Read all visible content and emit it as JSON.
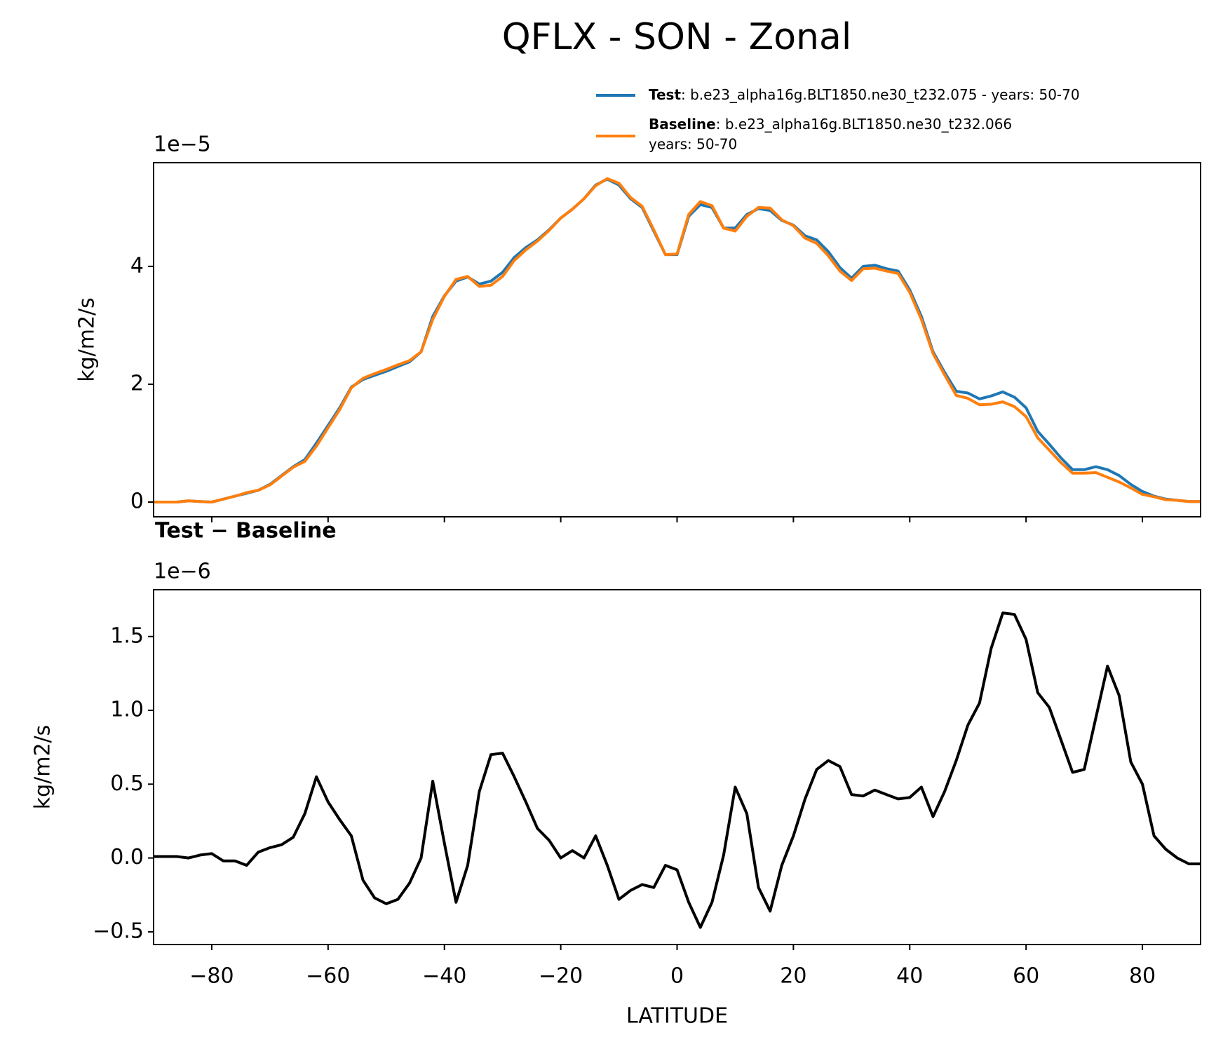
{
  "chart_data": [
    {
      "type": "line",
      "title": "QFLX - SON - Zonal",
      "offset_text": "1e−5",
      "ylabel": "kg/m2/s",
      "x": [
        -90,
        -88,
        -86,
        -84,
        -82,
        -80,
        -78,
        -76,
        -74,
        -72,
        -70,
        -68,
        -66,
        -64,
        -62,
        -60,
        -58,
        -56,
        -54,
        -52,
        -50,
        -48,
        -46,
        -44,
        -42,
        -40,
        -38,
        -36,
        -34,
        -32,
        -30,
        -28,
        -26,
        -24,
        -22,
        -20,
        -18,
        -16,
        -14,
        -12,
        -10,
        -8,
        -6,
        -4,
        -2,
        0,
        2,
        4,
        6,
        8,
        10,
        12,
        14,
        16,
        18,
        20,
        22,
        24,
        26,
        28,
        30,
        32,
        34,
        36,
        38,
        40,
        42,
        44,
        46,
        48,
        50,
        52,
        54,
        56,
        58,
        60,
        62,
        64,
        66,
        68,
        70,
        72,
        74,
        76,
        78,
        80,
        82,
        84,
        86,
        88,
        90
      ],
      "series": [
        {
          "name": "Test",
          "label": ": b.e23_alpha16g.BLT1850.ne30_t232.075 - years: 50-70",
          "color": "#1f77b4",
          "values": [
            0,
            0,
            0,
            0.02,
            0.01,
            0,
            0.05,
            0.1,
            0.15,
            0.2,
            0.3,
            0.45,
            0.6,
            0.72,
            1.0,
            1.3,
            1.6,
            1.95,
            2.08,
            2.15,
            2.22,
            2.3,
            2.38,
            2.55,
            3.15,
            3.5,
            3.75,
            3.82,
            3.7,
            3.75,
            3.9,
            4.15,
            4.32,
            4.45,
            4.62,
            4.82,
            4.97,
            5.15,
            5.38,
            5.48,
            5.38,
            5.15,
            5.0,
            4.6,
            4.2,
            4.2,
            4.85,
            5.05,
            5.0,
            4.65,
            4.65,
            4.88,
            4.98,
            4.95,
            4.78,
            4.7,
            4.52,
            4.45,
            4.25,
            3.98,
            3.8,
            4.0,
            4.02,
            3.96,
            3.92,
            3.6,
            3.15,
            2.55,
            2.2,
            1.88,
            1.85,
            1.75,
            1.8,
            1.87,
            1.78,
            1.6,
            1.2,
            0.98,
            0.75,
            0.55,
            0.55,
            0.6,
            0.55,
            0.45,
            0.3,
            0.18,
            0.1,
            0.05,
            0.03,
            0.01,
            0.01
          ]
        },
        {
          "name": "Baseline",
          "label": [
            ": b.e23_alpha16g.BLT1850.ne30_t232.066",
            "years: 50-70"
          ],
          "color": "#ff7f0e",
          "values": [
            0,
            0,
            0,
            0.02,
            0.01,
            0,
            0.05,
            0.1,
            0.16,
            0.2,
            0.29,
            0.44,
            0.59,
            0.69,
            0.95,
            1.26,
            1.57,
            1.94,
            2.1,
            2.18,
            2.25,
            2.33,
            2.4,
            2.55,
            3.1,
            3.49,
            3.78,
            3.83,
            3.66,
            3.68,
            3.83,
            4.1,
            4.28,
            4.43,
            4.61,
            4.82,
            4.97,
            5.15,
            5.37,
            5.49,
            5.41,
            5.17,
            5.02,
            4.62,
            4.2,
            4.21,
            4.88,
            5.1,
            5.03,
            4.65,
            4.6,
            4.85,
            5.0,
            4.99,
            4.79,
            4.69,
            4.48,
            4.39,
            4.18,
            3.92,
            3.76,
            3.96,
            3.97,
            3.92,
            3.88,
            3.56,
            3.1,
            2.52,
            2.16,
            1.81,
            1.76,
            1.65,
            1.66,
            1.7,
            1.62,
            1.45,
            1.09,
            0.88,
            0.67,
            0.49,
            0.49,
            0.5,
            0.42,
            0.34,
            0.24,
            0.13,
            0.09,
            0.04,
            0.03,
            0.01,
            0.01
          ]
        }
      ],
      "xlim": [
        -90,
        90
      ],
      "xticks": [
        -80,
        -60,
        -40,
        -20,
        0,
        20,
        40,
        60,
        80
      ],
      "ylim": [
        -0.25,
        5.76
      ],
      "yticks": [
        0,
        2,
        4
      ]
    },
    {
      "type": "line",
      "title": "Test − Baseline",
      "offset_text": "1e−6",
      "ylabel": "kg/m2/s",
      "xlabel": "LATITUDE",
      "color": "#000000",
      "x": [
        -90,
        -88,
        -86,
        -84,
        -82,
        -80,
        -78,
        -76,
        -74,
        -72,
        -70,
        -68,
        -66,
        -64,
        -62,
        -60,
        -58,
        -56,
        -54,
        -52,
        -50,
        -48,
        -46,
        -44,
        -42,
        -40,
        -38,
        -36,
        -34,
        -32,
        -30,
        -28,
        -26,
        -24,
        -22,
        -20,
        -18,
        -16,
        -14,
        -12,
        -10,
        -8,
        -6,
        -4,
        -2,
        0,
        2,
        4,
        6,
        8,
        10,
        12,
        14,
        16,
        18,
        20,
        22,
        24,
        26,
        28,
        30,
        32,
        34,
        36,
        38,
        40,
        42,
        44,
        46,
        48,
        50,
        52,
        54,
        56,
        58,
        60,
        62,
        64,
        66,
        68,
        70,
        72,
        74,
        76,
        78,
        80,
        82,
        84,
        86,
        88,
        90
      ],
      "values": [
        0.01,
        0.01,
        0.01,
        0,
        0.02,
        0.03,
        -0.02,
        -0.02,
        -0.05,
        0.04,
        0.07,
        0.09,
        0.14,
        0.3,
        0.55,
        0.38,
        0.26,
        0.15,
        -0.15,
        -0.27,
        -0.31,
        -0.28,
        -0.17,
        0,
        0.52,
        0.1,
        -0.3,
        -0.05,
        0.45,
        0.7,
        0.71,
        0.55,
        0.38,
        0.2,
        0.12,
        0,
        0.05,
        0,
        0.15,
        -0.05,
        -0.28,
        -0.22,
        -0.18,
        -0.2,
        -0.05,
        -0.08,
        -0.3,
        -0.47,
        -0.3,
        0.02,
        0.48,
        0.3,
        -0.2,
        -0.36,
        -0.05,
        0.15,
        0.4,
        0.6,
        0.66,
        0.62,
        0.43,
        0.42,
        0.46,
        0.43,
        0.4,
        0.41,
        0.48,
        0.28,
        0.45,
        0.66,
        0.9,
        1.05,
        1.42,
        1.66,
        1.65,
        1.48,
        1.12,
        1.02,
        0.8,
        0.58,
        0.6,
        0.95,
        1.3,
        1.1,
        0.65,
        0.5,
        0.15,
        0.06,
        0,
        -0.04,
        -0.04
      ],
      "xlim": [
        -90,
        90
      ],
      "xticks": [
        {
          "value": -80,
          "label": "−80"
        },
        {
          "value": -60,
          "label": "−60"
        },
        {
          "value": -40,
          "label": "−40"
        },
        {
          "value": -20,
          "label": "−20"
        },
        0,
        20,
        40,
        60,
        80
      ],
      "ylim": [
        -0.586,
        1.817
      ],
      "yticks": [
        {
          "value": -0.5,
          "label": "−0.5"
        },
        {
          "value": 0,
          "label": "0.0"
        },
        {
          "value": 0.5,
          "label": "0.5"
        },
        {
          "value": 1,
          "label": "1.0"
        },
        {
          "value": 1.5,
          "label": "1.5"
        }
      ]
    }
  ]
}
